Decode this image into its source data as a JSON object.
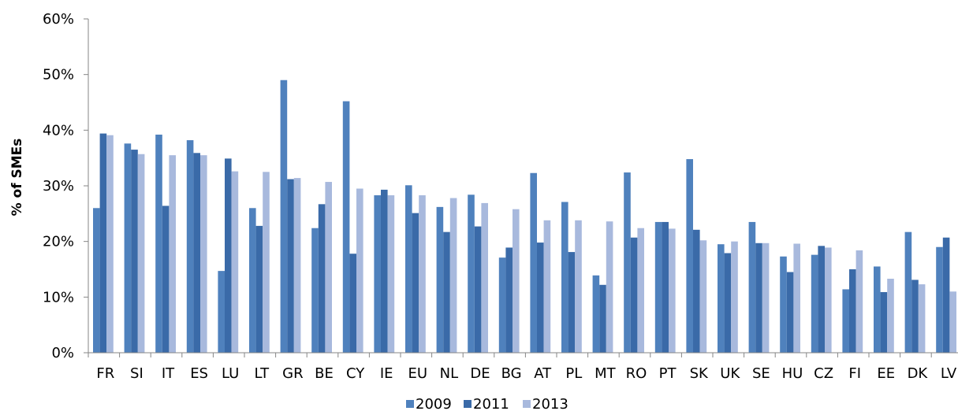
{
  "chart_data": {
    "type": "bar",
    "title": "",
    "xlabel": "",
    "ylabel": "% of SMEs",
    "ylim": [
      0,
      60
    ],
    "yticks": [
      "0%",
      "10%",
      "20%",
      "30%",
      "40%",
      "50%",
      "60%"
    ],
    "grid": false,
    "legend_position": "bottom",
    "categories": [
      "FR",
      "SI",
      "IT",
      "ES",
      "LU",
      "LT",
      "GR",
      "BE",
      "CY",
      "IE",
      "EU",
      "NL",
      "DE",
      "BG",
      "AT",
      "PL",
      "MT",
      "RO",
      "PT",
      "SK",
      "UK",
      "SE",
      "HU",
      "CZ",
      "FI",
      "EE",
      "DK",
      "LV"
    ],
    "series": [
      {
        "name": "2009",
        "color": "#4f81bd",
        "values": [
          26,
          37.6,
          39.2,
          38.2,
          14.7,
          26,
          49,
          22.4,
          45.2,
          28.3,
          30.1,
          26.2,
          28.4,
          17.1,
          32.3,
          27.1,
          13.9,
          32.4,
          23.5,
          34.8,
          19.5,
          23.5,
          17.3,
          17.6,
          11.4,
          15.5,
          21.7,
          19
        ]
      },
      {
        "name": "2011",
        "color": "#3a6aa8",
        "values": [
          39.4,
          36.5,
          26.4,
          35.9,
          34.9,
          22.8,
          31.2,
          26.7,
          17.8,
          29.3,
          25.1,
          21.7,
          22.7,
          18.9,
          19.8,
          18.1,
          12.2,
          20.7,
          23.5,
          22.1,
          17.9,
          19.7,
          14.5,
          19.2,
          15,
          10.9,
          13.1,
          20.7
        ]
      },
      {
        "name": "2013",
        "color": "#a8b9dd",
        "values": [
          39.1,
          35.7,
          35.5,
          35.5,
          32.6,
          32.5,
          31.4,
          30.7,
          29.5,
          28.3,
          28.3,
          27.8,
          26.9,
          25.8,
          23.8,
          23.8,
          23.6,
          22.4,
          22.3,
          20.2,
          20,
          19.7,
          19.6,
          18.9,
          18.4,
          13.3,
          12.3,
          11
        ]
      }
    ]
  }
}
